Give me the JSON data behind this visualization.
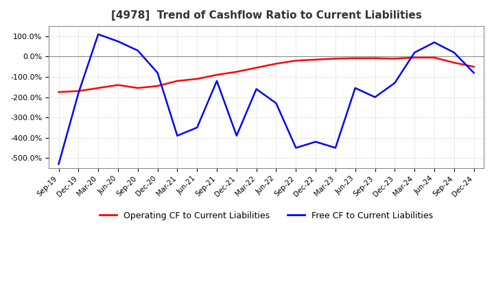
{
  "title": "[4978]  Trend of Cashflow Ratio to Current Liabilities",
  "legend_labels": [
    "Operating CF to Current Liabilities",
    "Free CF to Current Liabilities"
  ],
  "legend_colors": [
    "#ff0000",
    "#0000ff"
  ],
  "ylim": [
    -550,
    150
  ],
  "yticks": [
    100.0,
    0.0,
    -100.0,
    -200.0,
    -300.0,
    -400.0,
    -500.0
  ],
  "background_color": "#ffffff",
  "grid_color": "#b0b0b0",
  "x_labels": [
    "Sep-19",
    "Dec-19",
    "Mar-20",
    "Jun-20",
    "Sep-20",
    "Dec-20",
    "Mar-21",
    "Jun-21",
    "Sep-21",
    "Dec-21",
    "Mar-22",
    "Jun-22",
    "Sep-22",
    "Dec-22",
    "Mar-23",
    "Jun-23",
    "Sep-23",
    "Dec-23",
    "Mar-24",
    "Jun-24",
    "Sep-24",
    "Dec-24"
  ],
  "operating_cf": [
    -175,
    -170,
    -155,
    -140,
    -155,
    -145,
    -120,
    -110,
    -90,
    -75,
    -55,
    -35,
    -20,
    -15,
    -10,
    -8,
    -8,
    -10,
    -5,
    -5,
    -30,
    -50
  ],
  "free_cf": [
    -530,
    -180,
    110,
    75,
    30,
    -80,
    -390,
    -350,
    -120,
    -390,
    -160,
    -230,
    -450,
    -420,
    -450,
    -155,
    -200,
    -130,
    20,
    70,
    20,
    -80
  ]
}
